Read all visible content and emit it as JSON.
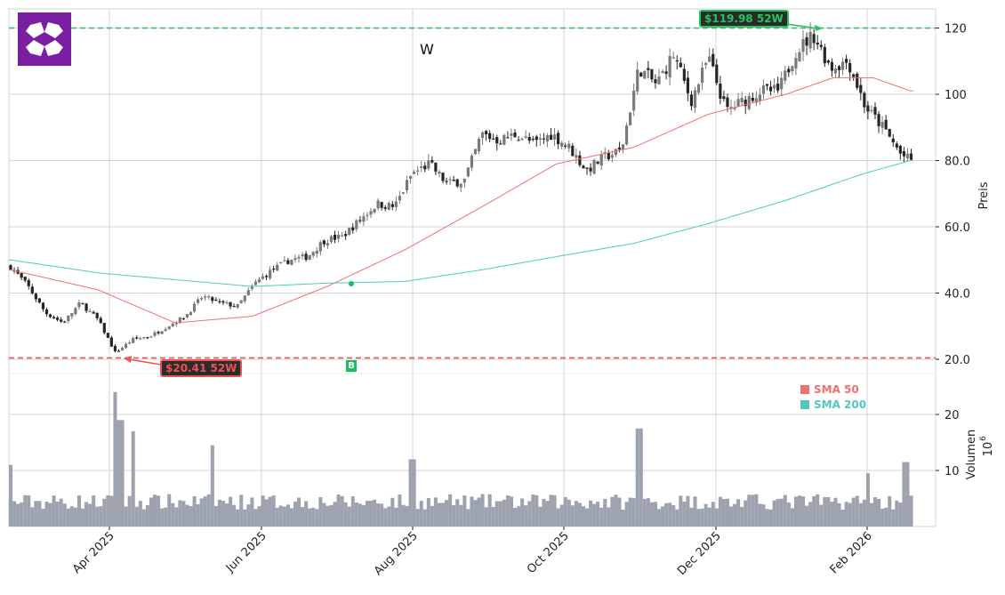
{
  "header": {
    "ticker": "W",
    "logo": "wayfair-diamond-logo"
  },
  "annotations": {
    "high_label": "$119.98 52W",
    "low_label": "$20.41 52W",
    "buy_marker": "B",
    "high_value": 119.98,
    "low_value": 20.41
  },
  "legend": [
    {
      "label": "SMA 50",
      "color": "#f07070"
    },
    {
      "label": "SMA 200",
      "color": "#4fc9bd"
    }
  ],
  "colors": {
    "up_candle": "#7a7a7a",
    "down_candle": "#262626",
    "volume_bar": "#9ca3af",
    "sma50": "#f07070",
    "sma200": "#4fc9bd",
    "high_line": "#3cc070",
    "low_line": "#e85a5a",
    "grid": "#d4d4d8",
    "logo_bg": "#7b1fa2"
  },
  "chart_data": {
    "type": "candlestick",
    "title": "W",
    "price_axis": {
      "label": "Preis",
      "ticks": [
        "20.0",
        "40.0",
        "60.0",
        "80.0",
        "100",
        "120"
      ],
      "ylim": [
        14,
        126
      ]
    },
    "volume_axis": {
      "label": "Volumen",
      "unit": "10^6",
      "ticks": [
        "10",
        "20"
      ],
      "ylim": [
        0,
        24
      ]
    },
    "x_ticks": [
      "Apr 2025",
      "Jun 2025",
      "Aug 2025",
      "Oct 2025",
      "Dec 2025",
      "Feb 2026"
    ],
    "grid": true,
    "close_keypoints": [
      [
        "2025-02-24",
        48
      ],
      [
        "2025-03-03",
        42
      ],
      [
        "2025-03-10",
        34
      ],
      [
        "2025-03-17",
        31
      ],
      [
        "2025-03-24",
        37
      ],
      [
        "2025-03-31",
        32
      ],
      [
        "2025-04-07",
        22
      ],
      [
        "2025-04-14",
        26
      ],
      [
        "2025-04-21",
        27
      ],
      [
        "2025-04-28",
        30
      ],
      [
        "2025-05-05",
        33
      ],
      [
        "2025-05-12",
        39
      ],
      [
        "2025-05-19",
        37
      ],
      [
        "2025-05-26",
        36
      ],
      [
        "2025-06-02",
        43
      ],
      [
        "2025-06-09",
        47
      ],
      [
        "2025-06-16",
        50
      ],
      [
        "2025-06-23",
        51
      ],
      [
        "2025-06-30",
        56
      ],
      [
        "2025-07-07",
        57
      ],
      [
        "2025-07-14",
        62
      ],
      [
        "2025-07-21",
        67
      ],
      [
        "2025-07-28",
        66
      ],
      [
        "2025-08-04",
        76
      ],
      [
        "2025-08-11",
        79
      ],
      [
        "2025-08-18",
        73
      ],
      [
        "2025-08-25",
        74
      ],
      [
        "2025-09-01",
        88
      ],
      [
        "2025-09-08",
        86
      ],
      [
        "2025-09-15",
        88
      ],
      [
        "2025-09-22",
        85
      ],
      [
        "2025-09-29",
        88
      ],
      [
        "2025-10-06",
        84
      ],
      [
        "2025-10-13",
        77
      ],
      [
        "2025-10-20",
        81
      ],
      [
        "2025-10-27",
        83
      ],
      [
        "2025-11-03",
        108
      ],
      [
        "2025-11-10",
        103
      ],
      [
        "2025-11-17",
        112
      ],
      [
        "2025-11-24",
        98
      ],
      [
        "2025-12-01",
        111
      ],
      [
        "2025-12-08",
        95
      ],
      [
        "2025-12-15",
        98
      ],
      [
        "2025-12-22",
        101
      ],
      [
        "2025-12-29",
        101
      ],
      [
        "2026-01-05",
        113
      ],
      [
        "2026-01-12",
        118
      ],
      [
        "2026-01-19",
        108
      ],
      [
        "2026-01-26",
        110
      ],
      [
        "2026-02-02",
        96
      ],
      [
        "2026-02-09",
        90
      ],
      [
        "2026-02-16",
        82
      ],
      [
        "2026-02-20",
        80
      ]
    ],
    "sma50_keypoints": [
      [
        "2025-02-24",
        47
      ],
      [
        "2025-03-31",
        41
      ],
      [
        "2025-05-01",
        31
      ],
      [
        "2025-06-01",
        33
      ],
      [
        "2025-07-01",
        42
      ],
      [
        "2025-08-01",
        53
      ],
      [
        "2025-09-01",
        66
      ],
      [
        "2025-10-01",
        79
      ],
      [
        "2025-11-01",
        84
      ],
      [
        "2025-12-01",
        94
      ],
      [
        "2026-01-01",
        100
      ],
      [
        "2026-01-20",
        105
      ],
      [
        "2026-02-05",
        105
      ],
      [
        "2026-02-20",
        101
      ]
    ],
    "sma200_keypoints": [
      [
        "2025-02-24",
        50
      ],
      [
        "2025-04-01",
        46
      ],
      [
        "2025-06-01",
        42
      ],
      [
        "2025-07-01",
        43
      ],
      [
        "2025-08-01",
        43.5
      ],
      [
        "2025-09-01",
        47
      ],
      [
        "2025-10-01",
        51
      ],
      [
        "2025-11-01",
        55
      ],
      [
        "2025-12-01",
        61
      ],
      [
        "2026-01-01",
        68
      ],
      [
        "2026-02-01",
        76
      ],
      [
        "2026-02-20",
        80
      ]
    ],
    "volume_spikes_millions": [
      [
        "2025-02-24",
        11
      ],
      [
        "2025-04-07",
        24
      ],
      [
        "2025-04-09",
        19
      ],
      [
        "2025-04-14",
        17
      ],
      [
        "2025-05-16",
        14.5
      ],
      [
        "2025-08-04",
        12
      ],
      [
        "2025-11-03",
        17.5
      ],
      [
        "2026-02-03",
        9.5
      ],
      [
        "2026-02-18",
        11.5
      ]
    ],
    "signals": [
      {
        "type": "buy",
        "label": "B",
        "date": "2025-07-01",
        "note": "SMA50 crosses above SMA200"
      }
    ],
    "reference_lines": [
      {
        "label": "$119.98 52W",
        "value": 119.98,
        "color": "#3cc070"
      },
      {
        "label": "$20.41 52W",
        "value": 20.41,
        "color": "#e85a5a"
      }
    ]
  }
}
